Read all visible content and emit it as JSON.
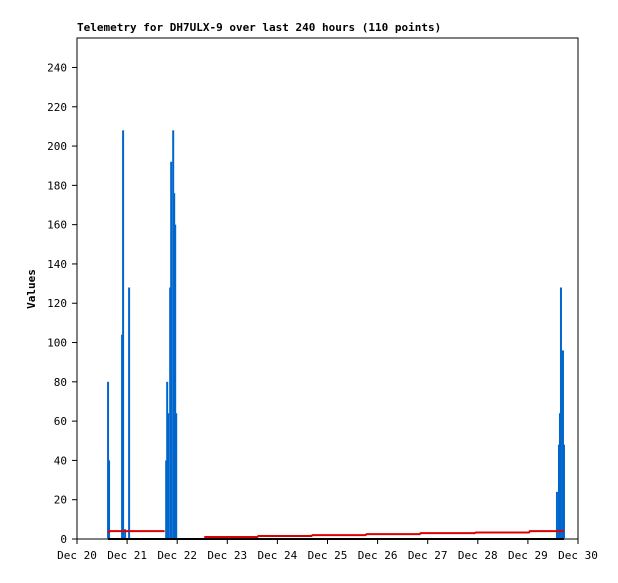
{
  "chart_data": {
    "type": "combo",
    "title": "Telemetry for DH7ULX-9 over last 240 hours (110 points)",
    "y_label": "Values",
    "xlim": [
      20,
      30
    ],
    "xticks": [
      {
        "value": 20,
        "label": "Dec 20"
      },
      {
        "value": 21,
        "label": "Dec 21"
      },
      {
        "value": 22,
        "label": "Dec 22"
      },
      {
        "value": 23,
        "label": "Dec 23"
      },
      {
        "value": 24,
        "label": "Dec 24"
      },
      {
        "value": 25,
        "label": "Dec 25"
      },
      {
        "value": 26,
        "label": "Dec 26"
      },
      {
        "value": 27,
        "label": "Dec 27"
      },
      {
        "value": 28,
        "label": "Dec 28"
      },
      {
        "value": 29,
        "label": "Dec 29"
      },
      {
        "value": 30,
        "label": "Dec 30"
      }
    ],
    "ylim": [
      0,
      255
    ],
    "yticks": [
      0,
      20,
      40,
      60,
      80,
      100,
      120,
      140,
      160,
      180,
      200,
      220,
      240
    ],
    "series": [
      {
        "type": "bar",
        "color": "#0066cc",
        "x": [
          20.62,
          20.64,
          20.9,
          20.92,
          20.96,
          21.04,
          21.78,
          21.8,
          21.82,
          21.86,
          21.88,
          21.92,
          21.94,
          21.96,
          21.98,
          29.58,
          29.62,
          29.64,
          29.66,
          29.7,
          29.72
        ],
        "values": [
          80,
          40,
          104,
          208,
          5,
          128,
          40,
          80,
          64,
          128,
          192,
          208,
          176,
          160,
          64,
          24,
          48,
          64,
          128,
          96,
          48
        ]
      },
      {
        "type": "line",
        "color": "#000000",
        "x": [
          20.62,
          29.72
        ],
        "values": [
          0,
          0
        ]
      },
      {
        "type": "line",
        "color": "#dd0000",
        "x": [
          20.62,
          20.64,
          20.95,
          21.75,
          21.8,
          22.54,
          23.6,
          23.62,
          24.68,
          24.7,
          25.76,
          25.78,
          26.84,
          26.86,
          27.94,
          27.96,
          29.02,
          29.04,
          29.72
        ],
        "values": [
          3,
          4,
          4,
          4,
          null,
          1,
          1,
          1.5,
          1.5,
          2,
          2,
          2.5,
          2.5,
          3,
          3,
          3.3,
          3.3,
          4,
          4
        ]
      }
    ]
  }
}
